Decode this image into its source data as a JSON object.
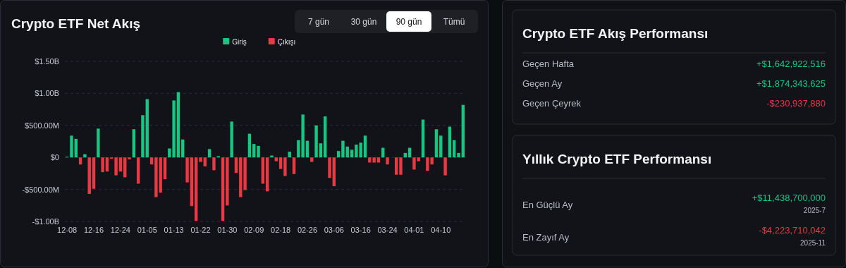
{
  "chart_data": [
    {
      "type": "bar",
      "title": "Crypto ETF Net Akış",
      "grid": "y",
      "legend": "top",
      "annotations": [
        "7 gün",
        "30 gün",
        "90 gün",
        "Tümü"
      ],
      "categories": [
        "12-08",
        null,
        null,
        null,
        null,
        null,
        "12-16",
        null,
        null,
        null,
        null,
        null,
        "12-24",
        null,
        null,
        null,
        null,
        null,
        "01-05",
        null,
        null,
        null,
        null,
        null,
        "01-13",
        null,
        null,
        null,
        null,
        null,
        "01-22",
        null,
        null,
        null,
        null,
        null,
        "01-30",
        null,
        null,
        null,
        null,
        null,
        "02-09",
        null,
        null,
        null,
        null,
        null,
        "02-18",
        null,
        null,
        null,
        null,
        null,
        "02-26",
        null,
        null,
        null,
        null,
        null,
        "03-06",
        null,
        null,
        null,
        null,
        null,
        "03-16",
        null,
        null,
        null,
        null,
        null,
        "03-24",
        null,
        null,
        null,
        null,
        null,
        "04-01",
        null,
        null,
        null,
        null,
        null,
        "04-10",
        null,
        null,
        null,
        null,
        null
      ],
      "ylim": [
        -1000000000,
        1500000000
      ],
      "yticks": [
        {
          "value": -1000000000,
          "label": "-$1.00B"
        },
        {
          "value": -500000000,
          "label": "-$500.00M"
        },
        {
          "value": 0,
          "label": "$0"
        },
        {
          "value": 500000000,
          "label": "$500.00M"
        },
        {
          "value": 1000000000,
          "label": "$1.00B"
        },
        {
          "value": 1500000000,
          "label": "$1.50B"
        }
      ],
      "series": [
        {
          "name": "Giriş",
          "color": "#16c784",
          "values": [
            10000000,
            340000000,
            290000000,
            null,
            50000000,
            null,
            null,
            450000000,
            null,
            null,
            null,
            null,
            null,
            null,
            null,
            440000000,
            null,
            660000000,
            910000000,
            null,
            null,
            null,
            null,
            140000000,
            890000000,
            1020000000,
            280000000,
            null,
            null,
            null,
            null,
            null,
            130000000,
            null,
            20000000,
            null,
            null,
            560000000,
            null,
            null,
            null,
            370000000,
            210000000,
            180000000,
            null,
            null,
            30000000,
            null,
            null,
            null,
            90000000,
            null,
            270000000,
            670000000,
            260000000,
            null,
            500000000,
            220000000,
            640000000,
            null,
            null,
            100000000,
            260000000,
            170000000,
            120000000,
            200000000,
            230000000,
            340000000,
            null,
            null,
            null,
            150000000,
            null,
            null,
            null,
            null,
            70000000,
            150000000,
            null,
            null,
            590000000,
            null,
            null,
            440000000,
            340000000,
            null,
            480000000,
            270000000,
            70000000,
            820000000
          ]
        },
        {
          "name": "Çıkışı",
          "color": "#ea3943",
          "values": [
            null,
            null,
            null,
            -110000000,
            null,
            -570000000,
            -490000000,
            null,
            -230000000,
            -220000000,
            -20000000,
            -280000000,
            -220000000,
            -310000000,
            -30000000,
            null,
            -410000000,
            null,
            null,
            -110000000,
            -620000000,
            -550000000,
            -340000000,
            null,
            null,
            null,
            null,
            -390000000,
            -760000000,
            -990000000,
            -70000000,
            -140000000,
            null,
            -200000000,
            null,
            -990000000,
            -750000000,
            null,
            -240000000,
            -620000000,
            -510000000,
            null,
            null,
            null,
            -410000000,
            -530000000,
            null,
            -60000000,
            -180000000,
            -290000000,
            null,
            -260000000,
            null,
            null,
            null,
            -70000000,
            null,
            null,
            null,
            -320000000,
            -450000000,
            null,
            null,
            null,
            null,
            null,
            null,
            null,
            -80000000,
            -80000000,
            -80000000,
            null,
            -110000000,
            null,
            -270000000,
            -270000000,
            null,
            null,
            -190000000,
            -60000000,
            null,
            -210000000,
            -110000000,
            null,
            null,
            -280000000,
            null,
            null,
            null,
            null
          ]
        }
      ]
    },
    {
      "type": "other",
      "title": "Crypto ETF Akış Performansı",
      "categories": [
        "Geçen Hafta",
        "Geçen Ay",
        "Geçen Çeyrek"
      ],
      "values": [
        1642922516,
        1874343625,
        -230937880
      ],
      "value_labels": [
        "+$1,642,922,516",
        "+$1,874,343,625",
        "-$230,937,880"
      ]
    },
    {
      "type": "other",
      "title": "Yıllık Crypto ETF Performansı",
      "categories": [
        "En Güçlü Ay",
        "En Zayıf Ay"
      ],
      "values": [
        11438700000,
        -4223710042
      ],
      "value_labels": [
        "+$11,438,700,000",
        "-$4,223,710,042"
      ],
      "annotations": [
        "2025-7",
        "2025-11"
      ]
    }
  ]
}
